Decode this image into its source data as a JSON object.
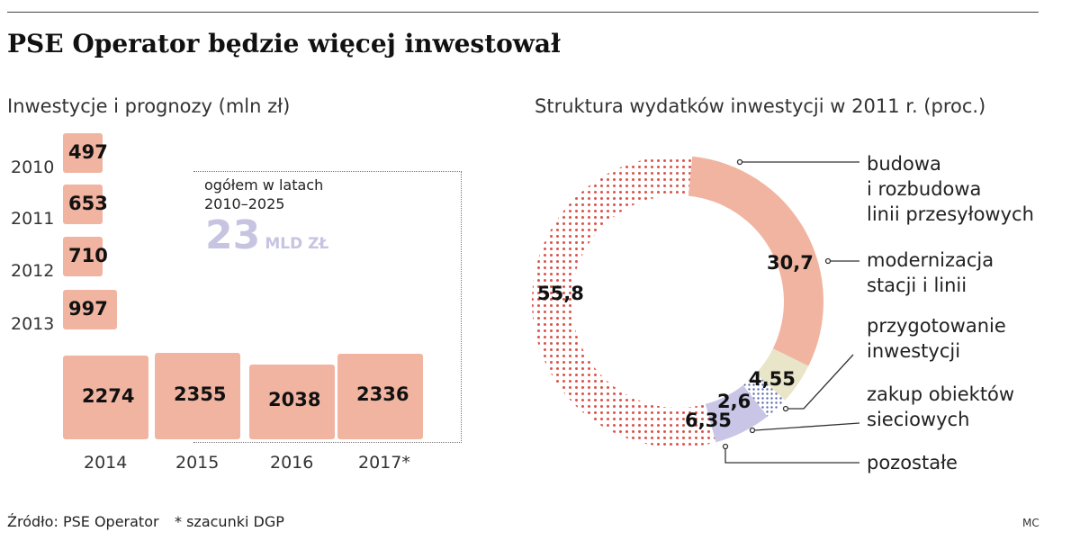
{
  "title": "PSE Operator będzie więcej inwestował",
  "chart_data": [
    {
      "type": "bar",
      "title": "Inwestycje i prognozy (mln zł)",
      "categories": [
        "2010",
        "2011",
        "2012",
        "2013",
        "2014",
        "2015",
        "2016",
        "2017*"
      ],
      "values": [
        497,
        653,
        710,
        997,
        2274,
        2355,
        2038,
        2336
      ],
      "value_labels": [
        "497",
        "653",
        "710",
        "997",
        "2274",
        "2355",
        "2038",
        "2336"
      ],
      "annotation": {
        "label_line1": "ogółem w latach",
        "label_line2": "2010–2025",
        "big_value": "23",
        "unit": "MLD ZŁ"
      },
      "bar_color": "#f1b4a1"
    },
    {
      "type": "pie",
      "title": "Struktura wydatków inwestycji w 2011 r. (proc.)",
      "slices": [
        {
          "name": "modernizacja stacji i linii",
          "value": 30.7,
          "label": "30,7",
          "color": "#f1b4a1",
          "pattern": "solid",
          "legend_lines": [
            "modernizacja",
            "stacji i linii"
          ]
        },
        {
          "name": "przygotowanie inwestycji",
          "value": 4.55,
          "label": "4,55",
          "color": "#e9e5c8",
          "pattern": "solid",
          "legend_lines": [
            "przygotowanie",
            "inwestycji"
          ]
        },
        {
          "name": "zakup obiektów sieciowych",
          "value": 2.6,
          "label": "2,6",
          "color": "#6a78b8",
          "pattern": "dots",
          "legend_lines": [
            "zakup obiektów",
            "sieciowych"
          ]
        },
        {
          "name": "pozostałe",
          "value": 6.35,
          "label": "6,35",
          "color": "#c8c5e6",
          "pattern": "solid",
          "legend_lines": [
            "pozostałe"
          ]
        },
        {
          "name": "budowa i rozbudowa linii przesyłowych",
          "value": 55.8,
          "label": "55,8",
          "color": "#d9544a",
          "pattern": "dots",
          "legend_lines": [
            "budowa",
            "i rozbudowa",
            "linii przesyłowych"
          ]
        }
      ]
    }
  ],
  "footer": {
    "source": "Źródło: PSE Operator",
    "note": "* szacunki DGP",
    "credit": "MC"
  }
}
